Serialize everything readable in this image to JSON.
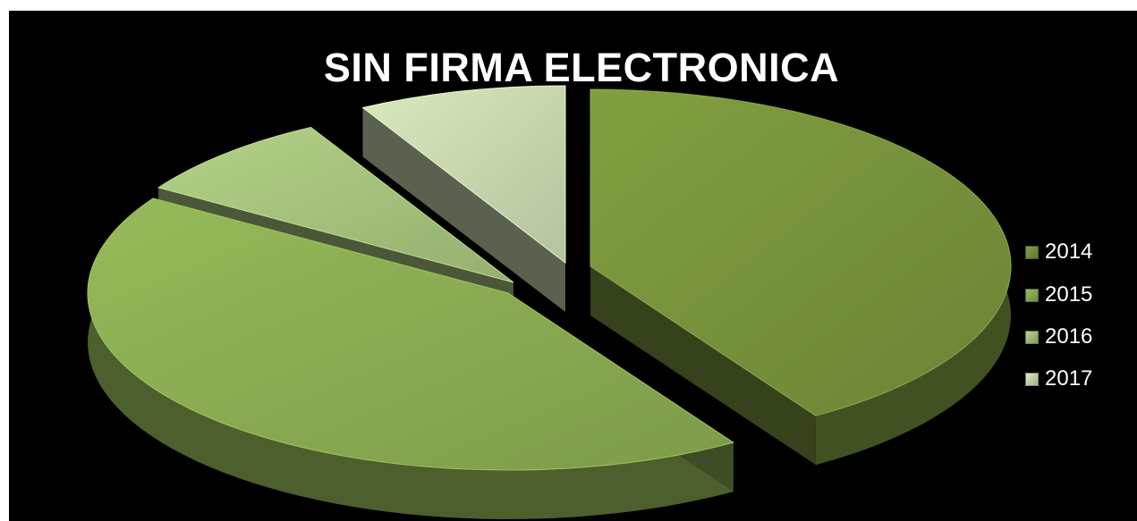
{
  "chart_data": {
    "type": "pie",
    "title": "SIN FIRMA ELECTRONICA",
    "categories": [
      "2014",
      "2015",
      "2016",
      "2017"
    ],
    "values": [
      41,
      43,
      8,
      8
    ],
    "colors": [
      "#77933c",
      "#8bac52",
      "#a6c27c",
      "#c9d8af"
    ],
    "legend_position": "right",
    "style": "3d-exploded"
  }
}
